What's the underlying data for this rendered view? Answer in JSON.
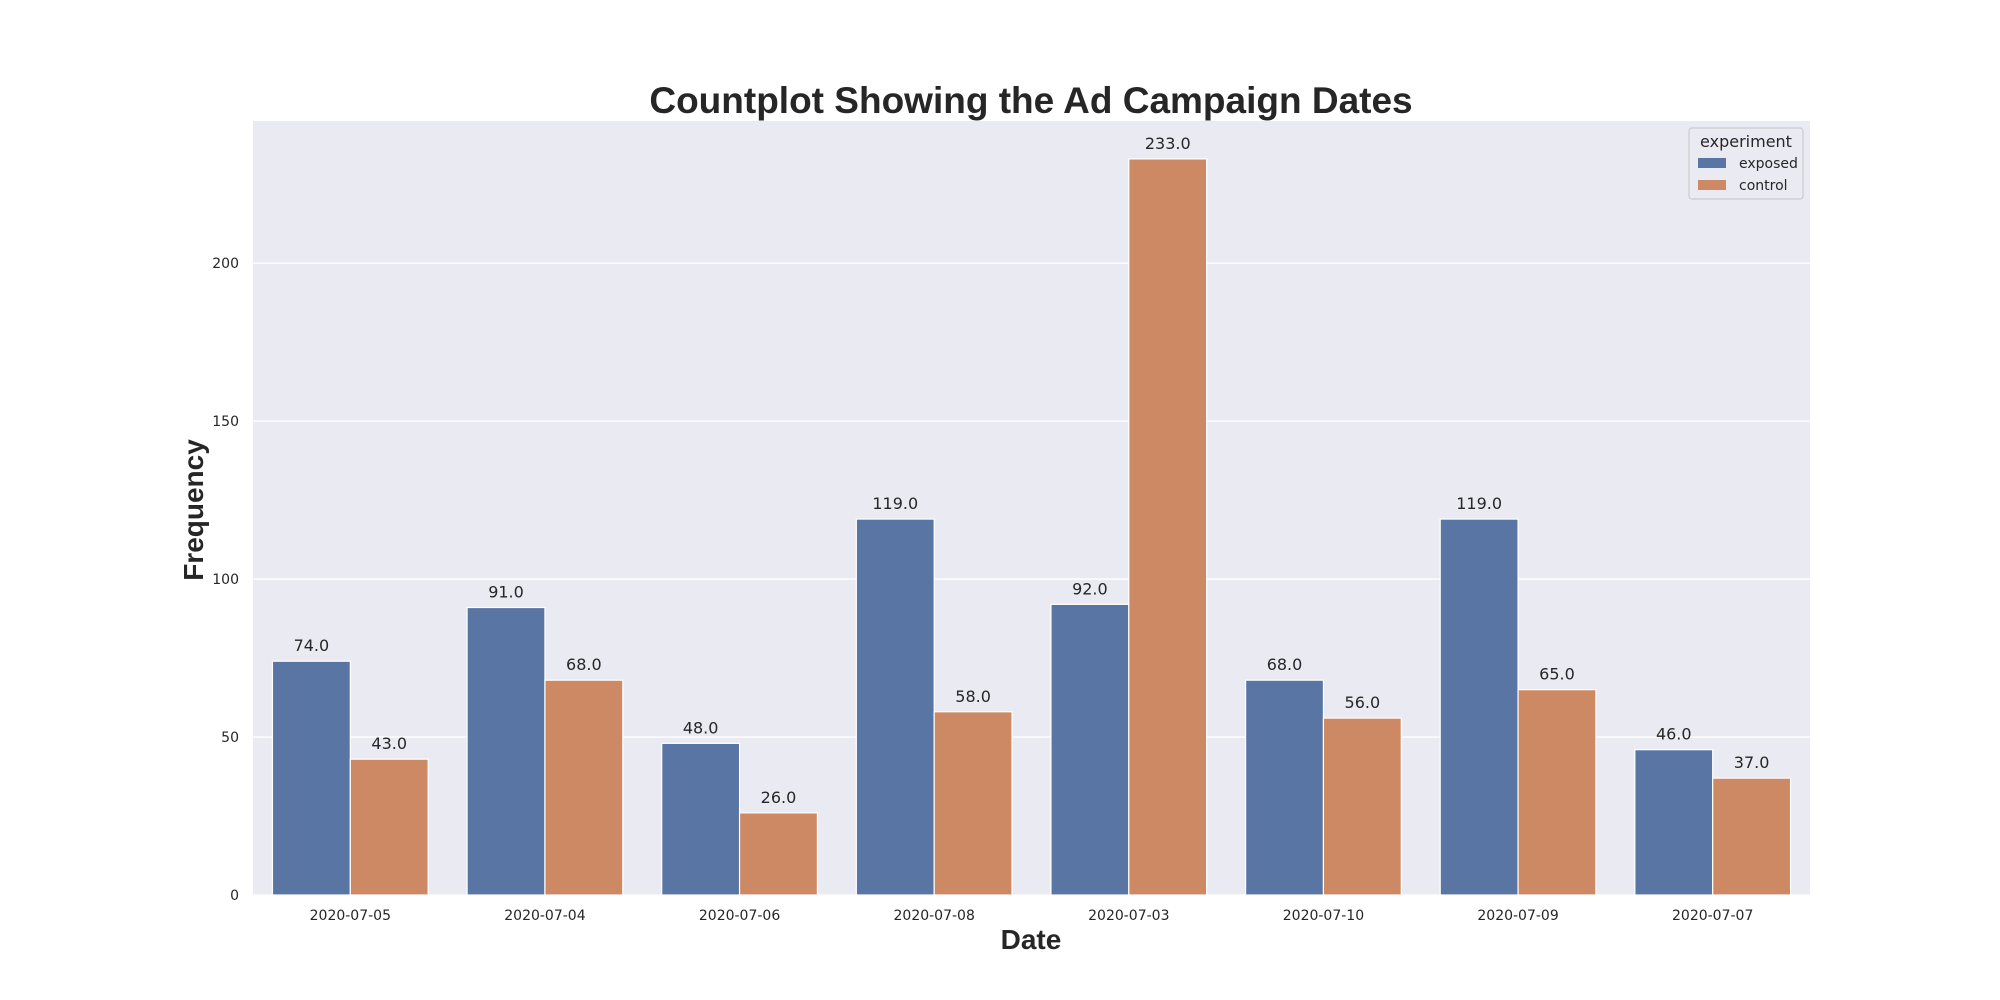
{
  "chart_data": {
    "type": "bar",
    "title": "Countplot Showing the Ad Campaign Dates",
    "xlabel": "Date",
    "ylabel": "Frequency",
    "categories": [
      "2020-07-05",
      "2020-07-04",
      "2020-07-06",
      "2020-07-08",
      "2020-07-03",
      "2020-07-10",
      "2020-07-09",
      "2020-07-07"
    ],
    "series": [
      {
        "name": "exposed",
        "color": "#5975a4",
        "values": [
          74,
          91,
          48,
          119,
          92,
          68,
          119,
          46
        ]
      },
      {
        "name": "control",
        "color": "#cc8963",
        "values": [
          43,
          68,
          26,
          58,
          233,
          56,
          65,
          37
        ]
      }
    ],
    "data_labels": [
      [
        "74.0",
        "91.0",
        "48.0",
        "119.0",
        "92.0",
        "68.0",
        "119.0",
        "46.0"
      ],
      [
        "43.0",
        "68.0",
        "26.0",
        "58.0",
        "233.0",
        "56.0",
        "65.0",
        "37.0"
      ]
    ],
    "ylim": [
      0,
      245
    ],
    "yticks": [
      0,
      50,
      100,
      150,
      200
    ],
    "ytick_labels": [
      "0",
      "50",
      "100",
      "150",
      "200"
    ],
    "grid": true,
    "legend": {
      "title": "experiment",
      "placement": "top-right"
    },
    "background_color": "#eaeaf2",
    "grid_color": "#ffffff"
  }
}
